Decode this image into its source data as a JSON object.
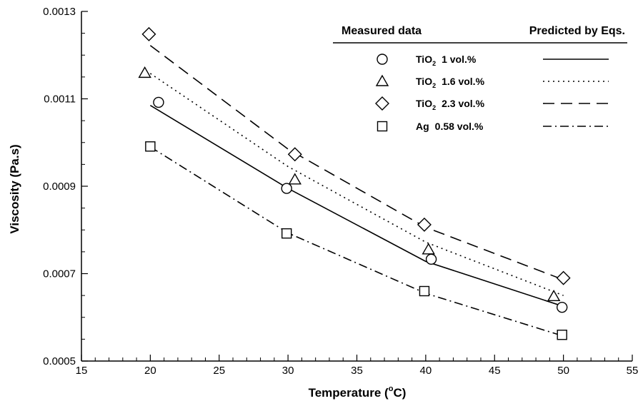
{
  "chart_data": {
    "type": "line",
    "xlabel": "Temperature (",
    "xlabel_degree": "o",
    "xlabel_unit": "C)",
    "ylabel": "Viscosity (Pa.s)",
    "xlim": [
      15,
      55
    ],
    "ylim": [
      0.0005,
      0.0013
    ],
    "x_ticks": [
      15,
      20,
      25,
      30,
      35,
      40,
      45,
      50,
      55
    ],
    "y_ticks": [
      0.0005,
      0.0007,
      0.0009,
      0.0011,
      0.0013
    ],
    "x_tick_labels": [
      "15",
      "20",
      "25",
      "30",
      "35",
      "40",
      "45",
      "50",
      "55"
    ],
    "y_tick_labels": [
      "0.0005",
      "0.0007",
      "0.0009",
      "0.0011",
      "0.0013"
    ],
    "grid": false,
    "legend": {
      "placement": "top-right",
      "header_measured": "Measured data",
      "header_predicted": "Predicted by Eqs."
    },
    "series": [
      {
        "id": "tio2-1",
        "label_main": "TiO",
        "label_sub": "2",
        "label_rest": "1 vol.%",
        "marker": "circle",
        "dash": "solid",
        "measured_x": [
          20.6,
          29.9,
          40.4,
          49.9
        ],
        "measured_y": [
          0.001092,
          0.000895,
          0.000733,
          0.000623
        ],
        "predicted_x": [
          20,
          30,
          40,
          50
        ],
        "predicted_y": [
          0.001085,
          0.000895,
          0.000728,
          0.000625
        ]
      },
      {
        "id": "tio2-1.6",
        "label_main": "TiO",
        "label_sub": "2",
        "label_rest": "1.6 vol.%",
        "marker": "triangle",
        "dash": "dotted",
        "measured_x": [
          19.6,
          30.5,
          40.2,
          49.3
        ],
        "measured_y": [
          0.001159,
          0.000915,
          0.000755,
          0.000648
        ],
        "predicted_x": [
          20,
          30,
          40,
          50
        ],
        "predicted_y": [
          0.001158,
          0.000945,
          0.000772,
          0.00065
        ]
      },
      {
        "id": "tio2-2.3",
        "label_main": "TiO",
        "label_sub": "2",
        "label_rest": "2.3 vol.%",
        "marker": "diamond",
        "dash": "long-dash",
        "measured_x": [
          19.9,
          30.5,
          39.9,
          50.0
        ],
        "measured_y": [
          0.001248,
          0.000973,
          0.000812,
          0.00069
        ],
        "predicted_x": [
          20,
          30,
          40,
          50
        ],
        "predicted_y": [
          0.001222,
          0.000985,
          0.000806,
          0.000686
        ]
      },
      {
        "id": "ag-0.58",
        "label_main": "Ag",
        "label_sub": "",
        "label_rest": "0.58 vol.%",
        "marker": "square",
        "dash": "dash-dot",
        "measured_x": [
          20.0,
          29.9,
          39.9,
          49.9
        ],
        "measured_y": [
          0.000991,
          0.000792,
          0.00066,
          0.00056
        ],
        "predicted_x": [
          20,
          30,
          40,
          50
        ],
        "predicted_y": [
          0.00099,
          0.000793,
          0.000655,
          0.000557
        ]
      }
    ]
  }
}
